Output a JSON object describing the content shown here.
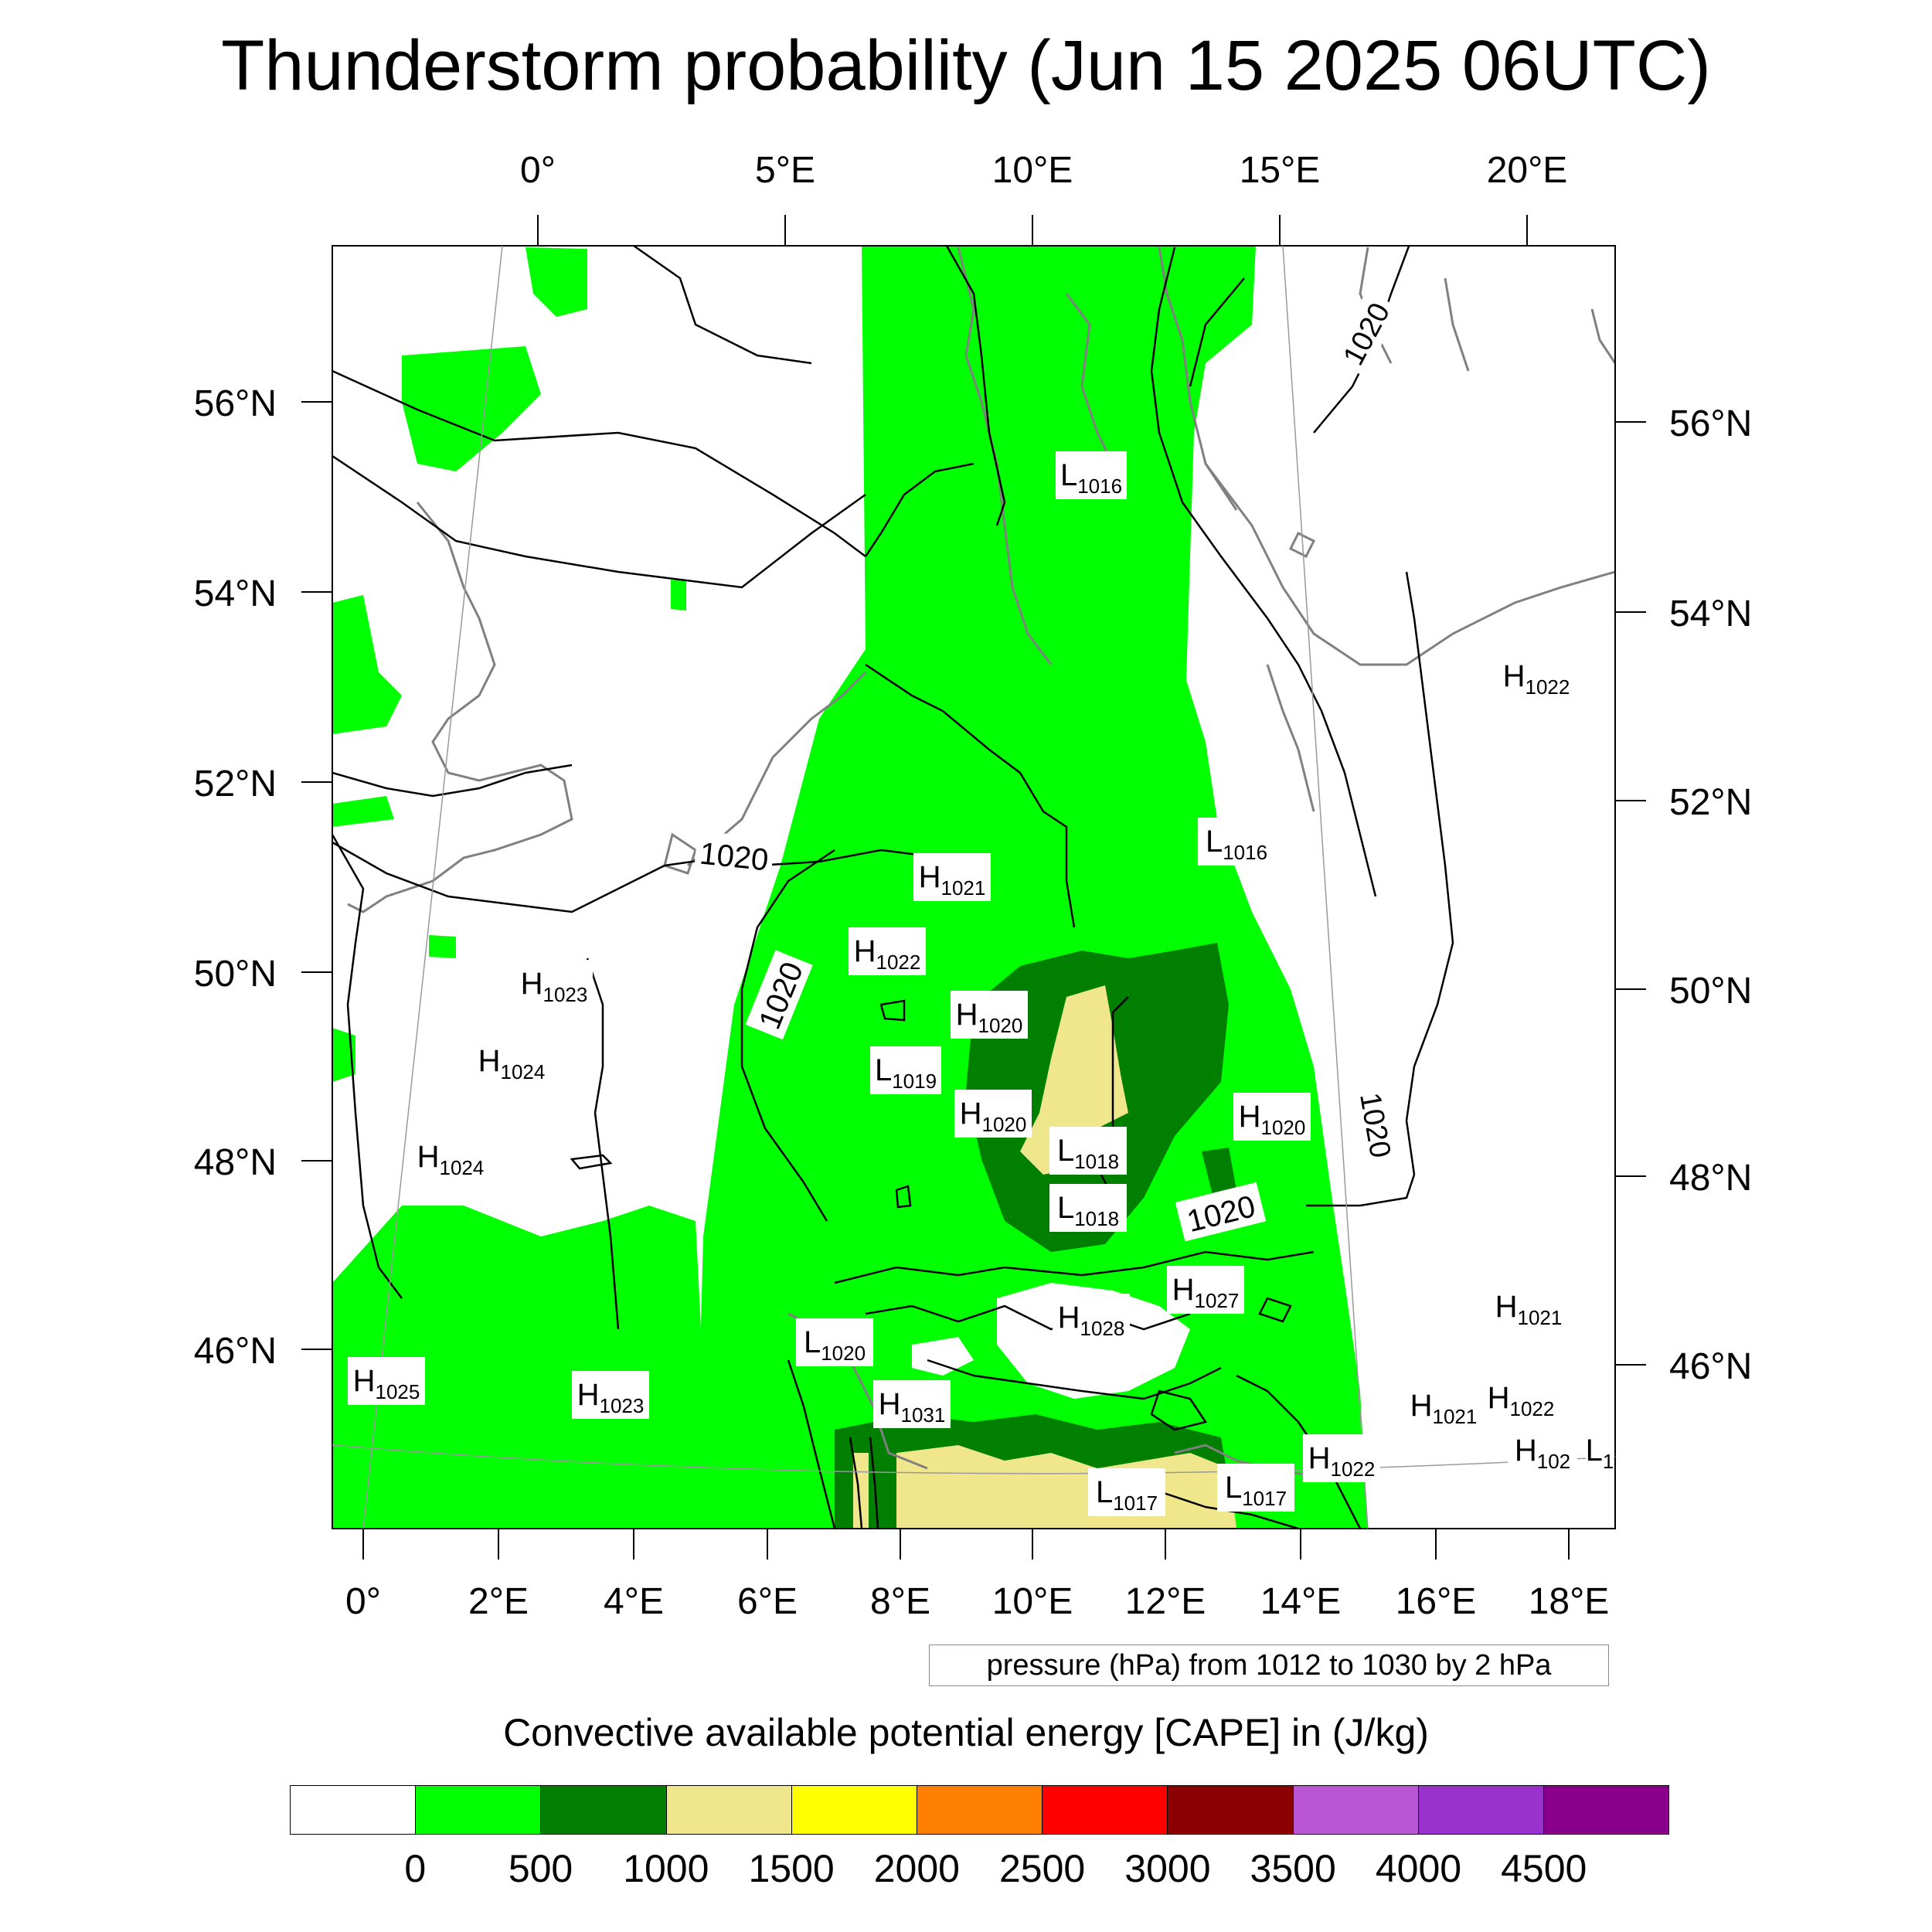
{
  "title": "Thunderstorm probability (Jun 15 2025 06UTC)",
  "map": {
    "top_lon_labels": [
      "0°",
      "5°E",
      "10°E",
      "15°E",
      "20°E"
    ],
    "bottom_lon_labels": [
      "0°",
      "2°E",
      "4°E",
      "6°E",
      "8°E",
      "10°E",
      "12°E",
      "14°E",
      "16°E",
      "18°E"
    ],
    "left_lat_labels": [
      "56°N",
      "54°N",
      "52°N",
      "50°N",
      "48°N",
      "46°N"
    ],
    "right_lat_labels": [
      "56°N",
      "54°N",
      "52°N",
      "50°N",
      "48°N",
      "46°N"
    ],
    "contour_labels": [
      "1020",
      "1020",
      "1020",
      "1020",
      "1020"
    ],
    "pressure_centers": [
      {
        "type": "L",
        "value": "1016"
      },
      {
        "type": "H",
        "value": "1022"
      },
      {
        "type": "L",
        "value": "1016"
      },
      {
        "type": "H",
        "value": "1021"
      },
      {
        "type": "H",
        "value": "1022"
      },
      {
        "type": "H",
        "value": "1023"
      },
      {
        "type": "H",
        "value": "1020"
      },
      {
        "type": "H",
        "value": "1024"
      },
      {
        "type": "L",
        "value": "1019"
      },
      {
        "type": "H",
        "value": "1020"
      },
      {
        "type": "H",
        "value": "1020"
      },
      {
        "type": "H",
        "value": "1024"
      },
      {
        "type": "L",
        "value": "1018"
      },
      {
        "type": "L",
        "value": "1018"
      },
      {
        "type": "H",
        "value": "1027"
      },
      {
        "type": "H",
        "value": "1028"
      },
      {
        "type": "H",
        "value": "1021"
      },
      {
        "type": "L",
        "value": "1020"
      },
      {
        "type": "H",
        "value": "1025"
      },
      {
        "type": "H",
        "value": "1023"
      },
      {
        "type": "H",
        "value": "1031"
      },
      {
        "type": "H",
        "value": "1021"
      },
      {
        "type": "H",
        "value": "1022"
      },
      {
        "type": "L",
        "value": "1017"
      },
      {
        "type": "L",
        "value": "1017"
      },
      {
        "type": "H",
        "value": "1022"
      },
      {
        "type": "H",
        "value": "102"
      },
      {
        "type": "L",
        "value": "1"
      }
    ],
    "colors": {
      "cape_0_500": "#00ff00",
      "cape_500_1000": "#007f00",
      "cape_1000_1500": "#f0e68c",
      "coastline": "#808080",
      "isobar": "#000000"
    }
  },
  "contour_note": "pressure (hPa) from 1012 to 1030 by 2 hPa",
  "colorbar": {
    "title": "Convective available potential energy [CAPE] in (J/kg)",
    "colors": [
      "#ffffff",
      "#00ff00",
      "#007f00",
      "#f0e68c",
      "#ffff00",
      "#ff8000",
      "#ff0000",
      "#8b0000",
      "#ba55d3",
      "#9932cc",
      "#8b008b"
    ],
    "ticks": [
      "0",
      "500",
      "1000",
      "1500",
      "2000",
      "2500",
      "3000",
      "3500",
      "4000",
      "4500"
    ]
  }
}
